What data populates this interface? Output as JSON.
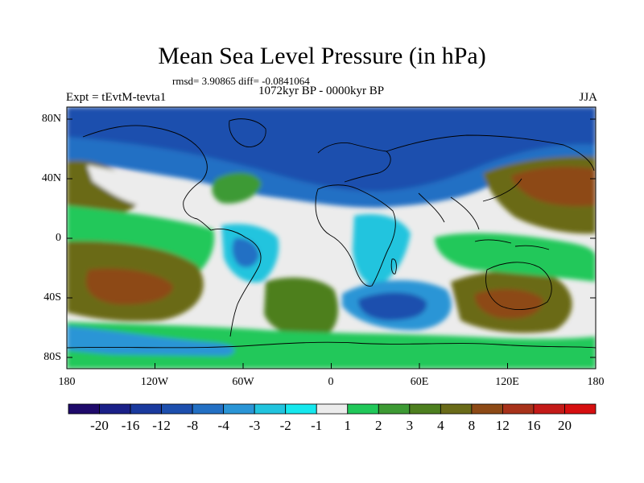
{
  "title": "Mean Sea Level Pressure (in hPa)",
  "stats_line": "rmsd= 3.90865 diff= -0.0841064",
  "period": "1072kyr BP - 0000kyr BP",
  "experiment": "Expt = tEvtM-tevta1",
  "season": "JJA",
  "axes": {
    "y_labels": [
      "80N",
      "40N",
      "0",
      "40S",
      "80S"
    ],
    "x_labels": [
      "180",
      "120W",
      "60W",
      "0",
      "60E",
      "120E",
      "180"
    ]
  },
  "colorbar": {
    "labels": [
      "-20",
      "-16",
      "-12",
      "-8",
      "-4",
      "-3",
      "-2",
      "-1",
      "1",
      "2",
      "3",
      "4",
      "8",
      "12",
      "16",
      "20"
    ],
    "colors": [
      "#1f0a6b",
      "#1a2088",
      "#1a3a9e",
      "#1d4fae",
      "#2370c4",
      "#2a95d6",
      "#21c4de",
      "#16e8ee",
      "#ececec",
      "#21c85a",
      "#3d9a34",
      "#4d7f1f",
      "#6a6b19",
      "#8d4a16",
      "#a8321a",
      "#c41a18",
      "#d60f10"
    ]
  },
  "map_colors": {
    "neutral": "#ececec",
    "ocean_dark_blue": "#1d4fae",
    "mid_blue": "#2370c4",
    "light_blue": "#2a95d6",
    "cyan": "#21c4de",
    "pale_cyan": "#16e8ee",
    "green": "#21c85a",
    "dark_green": "#3d9a34",
    "olive": "#4d7f1f",
    "brown": "#6a6b19",
    "dark_brown": "#8d4a16"
  }
}
